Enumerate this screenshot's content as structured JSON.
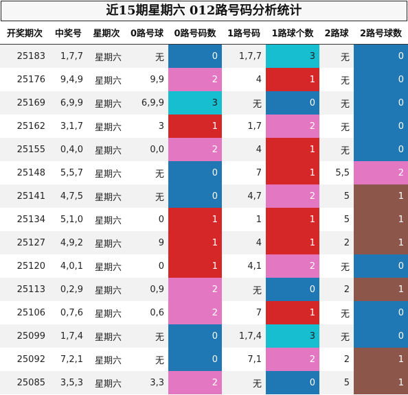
{
  "title": "近15期星期六 012路号码分析统计",
  "columns": [
    "开奖期次",
    "中奖号",
    "星期次",
    "0路号球",
    "0路号码数",
    "1路号码",
    "1路球个数",
    "2路球",
    "2路号球数"
  ],
  "rows": [
    {
      "period": "25183",
      "numbers": "1,7,7",
      "weekday": "星期六",
      "r0": "无",
      "r0n": "0",
      "r1": "1,7,7",
      "r1n": "3",
      "r2": "无",
      "r2n": "0"
    },
    {
      "period": "25176",
      "numbers": "9,4,9",
      "weekday": "星期六",
      "r0": "9,9",
      "r0n": "2",
      "r1": "4",
      "r1n": "1",
      "r2": "无",
      "r2n": "0"
    },
    {
      "period": "25169",
      "numbers": "6,9,9",
      "weekday": "星期六",
      "r0": "6,9,9",
      "r0n": "3",
      "r1": "无",
      "r1n": "0",
      "r2": "无",
      "r2n": "0"
    },
    {
      "period": "25162",
      "numbers": "3,1,7",
      "weekday": "星期六",
      "r0": "3",
      "r0n": "1",
      "r1": "1,7",
      "r1n": "2",
      "r2": "无",
      "r2n": "0"
    },
    {
      "period": "25155",
      "numbers": "0,4,0",
      "weekday": "星期六",
      "r0": "0,0",
      "r0n": "2",
      "r1": "4",
      "r1n": "1",
      "r2": "无",
      "r2n": "0"
    },
    {
      "period": "25148",
      "numbers": "5,5,7",
      "weekday": "星期六",
      "r0": "无",
      "r0n": "0",
      "r1": "7",
      "r1n": "1",
      "r2": "5,5",
      "r2n": "2"
    },
    {
      "period": "25141",
      "numbers": "4,7,5",
      "weekday": "星期六",
      "r0": "无",
      "r0n": "0",
      "r1": "4,7",
      "r1n": "2",
      "r2": "5",
      "r2n": "1"
    },
    {
      "period": "25134",
      "numbers": "5,1,0",
      "weekday": "星期六",
      "r0": "0",
      "r0n": "1",
      "r1": "1",
      "r1n": "1",
      "r2": "5",
      "r2n": "1"
    },
    {
      "period": "25127",
      "numbers": "4,9,2",
      "weekday": "星期六",
      "r0": "9",
      "r0n": "1",
      "r1": "4",
      "r1n": "1",
      "r2": "2",
      "r2n": "1"
    },
    {
      "period": "25120",
      "numbers": "4,0,1",
      "weekday": "星期六",
      "r0": "0",
      "r0n": "1",
      "r1": "4,1",
      "r1n": "2",
      "r2": "无",
      "r2n": "0"
    },
    {
      "period": "25113",
      "numbers": "0,2,9",
      "weekday": "星期六",
      "r0": "0,9",
      "r0n": "2",
      "r1": "无",
      "r1n": "0",
      "r2": "2",
      "r2n": "1"
    },
    {
      "period": "25106",
      "numbers": "0,7,6",
      "weekday": "星期六",
      "r0": "0,6",
      "r0n": "2",
      "r1": "7",
      "r1n": "1",
      "r2": "无",
      "r2n": "0"
    },
    {
      "period": "25099",
      "numbers": "1,7,4",
      "weekday": "星期六",
      "r0": "无",
      "r0n": "0",
      "r1": "1,7,4",
      "r1n": "3",
      "r2": "无",
      "r2n": "0"
    },
    {
      "period": "25092",
      "numbers": "7,2,1",
      "weekday": "星期六",
      "r0": "无",
      "r0n": "0",
      "r1": "7,1",
      "r1n": "2",
      "r2": "2",
      "r2n": "1"
    },
    {
      "period": "25085",
      "numbers": "3,5,3",
      "weekday": "星期六",
      "r0": "3,3",
      "r0n": "2",
      "r1": "无",
      "r1n": "0",
      "r2": "5",
      "r2n": "1"
    }
  ],
  "colors": {
    "count_0": "#1f77b4",
    "count_1": "#d62728",
    "count_2": "#e377c2",
    "count_3": "#17becf",
    "route2_count_1": "#8c564b"
  }
}
